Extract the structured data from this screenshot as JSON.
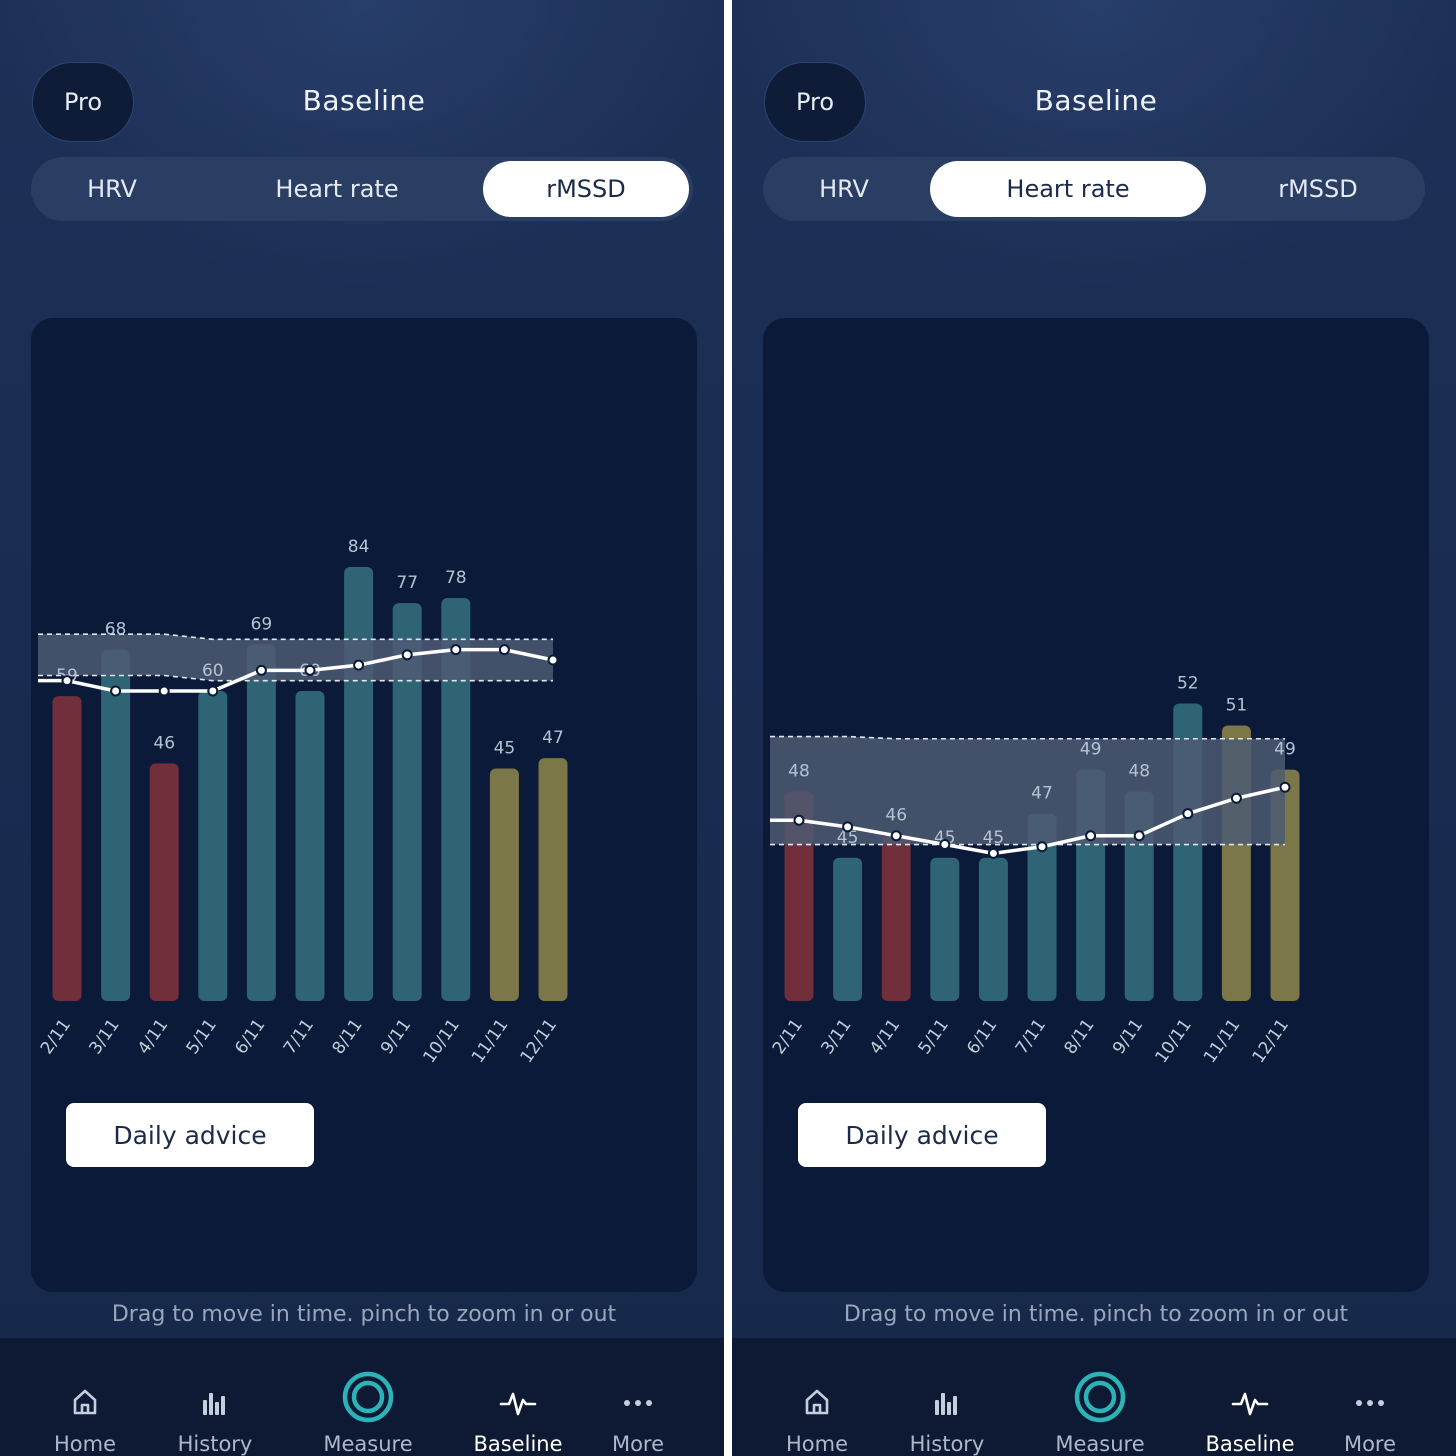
{
  "header": {
    "pro_label": "Pro",
    "title": "Baseline"
  },
  "tabs": [
    "HRV",
    "Heart rate",
    "rMSSD"
  ],
  "advice_label": "Daily advice",
  "hint": "Drag to move in time. pinch to zoom in or out",
  "nav": [
    {
      "label": "Home",
      "icon": "home-icon"
    },
    {
      "label": "History",
      "icon": "history-icon"
    },
    {
      "label": "Measure",
      "icon": "measure-icon"
    },
    {
      "label": "Baseline",
      "icon": "baseline-icon"
    },
    {
      "label": "More",
      "icon": "more-icon"
    }
  ],
  "colors": {
    "red": "#712f3b",
    "teal": "#2f6474",
    "olive": "#7b7748",
    "accent": "#2bb3b8",
    "band": "#4d5a73"
  },
  "screens": [
    {
      "active_tab": 2,
      "chart_data": {
        "type": "bar",
        "categories": [
          "2/11",
          "3/11",
          "4/11",
          "5/11",
          "6/11",
          "7/11",
          "8/11",
          "9/11",
          "10/11",
          "11/11",
          "12/11"
        ],
        "values": [
          59,
          68,
          46,
          60,
          69,
          60,
          84,
          77,
          78,
          45,
          47
        ],
        "bar_status": [
          "red",
          "teal",
          "red",
          "teal",
          "teal",
          "teal",
          "teal",
          "teal",
          "teal",
          "olive",
          "olive"
        ],
        "baseline": [
          62,
          60,
          60,
          60,
          64,
          64,
          65,
          67,
          68,
          68,
          66
        ],
        "band_upper": [
          71,
          71,
          71,
          70,
          70,
          70,
          70,
          70,
          70,
          70,
          70
        ],
        "band_lower": [
          63,
          63,
          63,
          62,
          62,
          62,
          62,
          62,
          62,
          62,
          62
        ],
        "ylim": [
          0,
          90
        ]
      }
    },
    {
      "active_tab": 1,
      "chart_data": {
        "type": "bar",
        "categories": [
          "2/11",
          "3/11",
          "4/11",
          "5/11",
          "6/11",
          "7/11",
          "8/11",
          "9/11",
          "10/11",
          "11/11",
          "12/11"
        ],
        "values": [
          48,
          45,
          46,
          45,
          45,
          47,
          49,
          48,
          52,
          51,
          49
        ],
        "bar_status": [
          "red",
          "teal",
          "red",
          "teal",
          "teal",
          "teal",
          "teal",
          "teal",
          "teal",
          "olive",
          "olive"
        ],
        "baseline": [
          46.7,
          46.4,
          46.0,
          45.6,
          45.2,
          45.5,
          46.0,
          46.0,
          47.0,
          47.7,
          48.2
        ],
        "band_upper": [
          50.5,
          50.5,
          50.4,
          50.4,
          50.4,
          50.4,
          50.4,
          50.4,
          50.4,
          50.4,
          50.4
        ],
        "band_lower": [
          45.6,
          45.6,
          45.6,
          45.6,
          45.6,
          45.6,
          45.6,
          45.6,
          45.6,
          45.6,
          45.6
        ],
        "ylim": [
          38.5,
          59.6
        ]
      }
    }
  ]
}
